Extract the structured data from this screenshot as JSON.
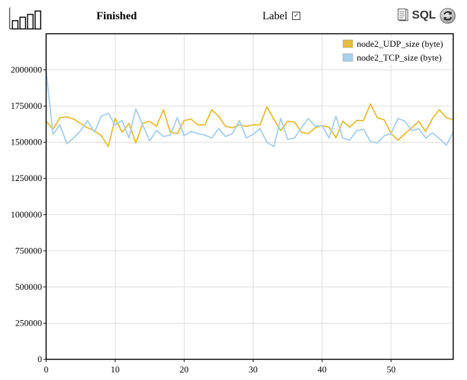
{
  "toolbar": {
    "status": "Finished",
    "label_text": "Label",
    "label_checked": true,
    "sql_label": "SQL"
  },
  "colors": {
    "udp": "#e6be3c",
    "tcp": "#a9d0ec"
  },
  "chart_data": {
    "type": "line",
    "xlim": [
      0,
      59
    ],
    "ylim": [
      0,
      2250000
    ],
    "x_ticks": [
      0,
      10,
      20,
      30,
      40,
      50
    ],
    "y_ticks": [
      0,
      250000,
      500000,
      750000,
      1000000,
      1250000,
      1500000,
      1750000,
      2000000
    ],
    "grid": true,
    "legend_position": "top-right",
    "series": [
      {
        "name": "node2_UDP_size (byte)",
        "values": [
          1645000,
          1590000,
          1670000,
          1675000,
          1660000,
          1630000,
          1600000,
          1580000,
          1545000,
          1470000,
          1665000,
          1570000,
          1630000,
          1495000,
          1630000,
          1645000,
          1610000,
          1725000,
          1570000,
          1560000,
          1650000,
          1660000,
          1620000,
          1620000,
          1725000,
          1680000,
          1610000,
          1600000,
          1620000,
          1610000,
          1620000,
          1620000,
          1745000,
          1660000,
          1580000,
          1645000,
          1640000,
          1570000,
          1560000,
          1600000,
          1615000,
          1605000,
          1530000,
          1645000,
          1605000,
          1650000,
          1650000,
          1765000,
          1670000,
          1655000,
          1560000,
          1515000,
          1560000,
          1600000,
          1645000,
          1575000,
          1665000,
          1725000,
          1670000,
          1655000
        ]
      },
      {
        "name": "node2_TCP_size (byte)",
        "values": [
          1990000,
          1555000,
          1620000,
          1490000,
          1530000,
          1580000,
          1650000,
          1570000,
          1680000,
          1700000,
          1620000,
          1650000,
          1530000,
          1730000,
          1620000,
          1510000,
          1580000,
          1540000,
          1550000,
          1670000,
          1545000,
          1575000,
          1560000,
          1550000,
          1530000,
          1595000,
          1540000,
          1560000,
          1650000,
          1530000,
          1555000,
          1595000,
          1500000,
          1470000,
          1665000,
          1520000,
          1530000,
          1600000,
          1665000,
          1610000,
          1615000,
          1530000,
          1680000,
          1530000,
          1515000,
          1580000,
          1590000,
          1505000,
          1495000,
          1545000,
          1560000,
          1665000,
          1645000,
          1580000,
          1595000,
          1530000,
          1565000,
          1525000,
          1480000,
          1570000
        ]
      }
    ]
  }
}
